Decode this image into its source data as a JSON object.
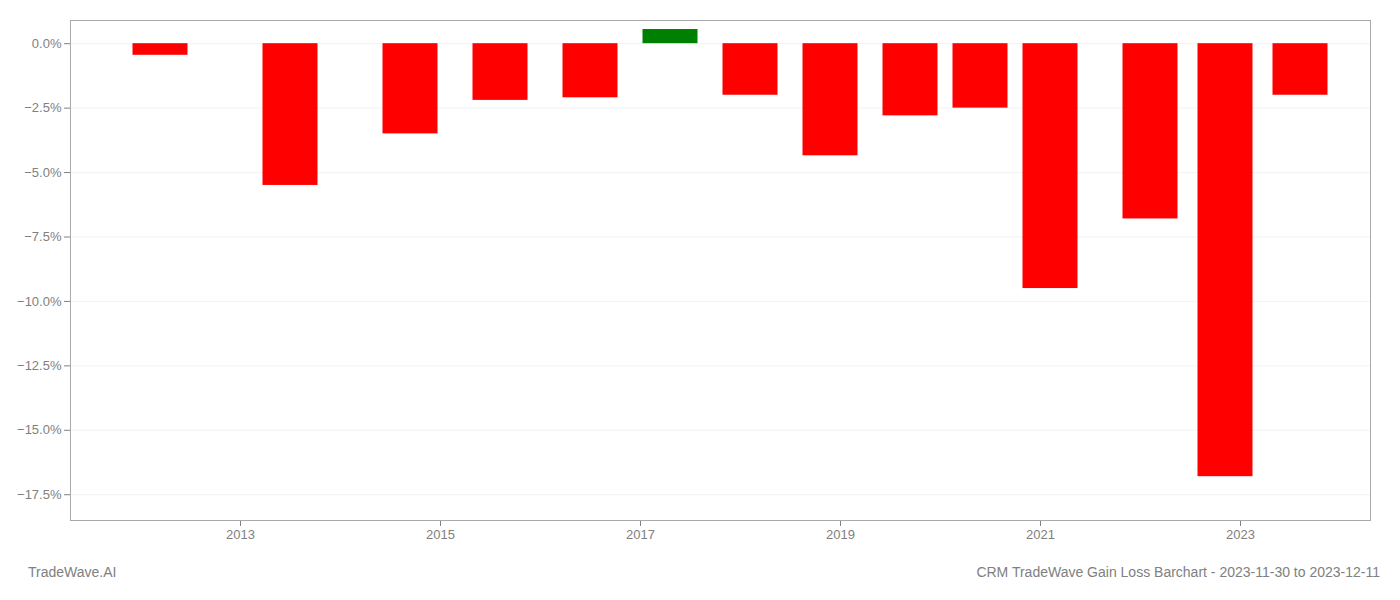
{
  "chart_data": {
    "type": "bar",
    "title": "CRM TradeWave Gain Loss Barchart - 2023-11-30 to 2023-12-11",
    "annotations": [
      "TradeWave.AI"
    ],
    "x": [
      2012.2,
      2013.5,
      2014.7,
      2015.6,
      2016.5,
      2017.3,
      2018.1,
      2018.9,
      2019.7,
      2020.4,
      2021.1,
      2022.1,
      2022.85,
      2023.6
    ],
    "values": [
      -0.45,
      -5.5,
      -3.5,
      -2.2,
      -2.1,
      0.55,
      -2.0,
      -4.35,
      -2.8,
      -2.5,
      -9.5,
      -6.8,
      -16.8,
      -2.0
    ],
    "colors": [
      "#ff0000",
      "#ff0000",
      "#ff0000",
      "#ff0000",
      "#ff0000",
      "#008000",
      "#ff0000",
      "#ff0000",
      "#ff0000",
      "#ff0000",
      "#ff0000",
      "#ff0000",
      "#ff0000",
      "#ff0000"
    ],
    "xlim": [
      2011.3,
      2024.3
    ],
    "xticks": [
      2013,
      2015,
      2017,
      2019,
      2021,
      2023
    ],
    "ylim": [
      -18.5,
      0.9
    ],
    "yticks": [
      {
        "value": 0.0,
        "label": "0.0%"
      },
      {
        "value": -2.5,
        "label": "−2.5%"
      },
      {
        "value": -5.0,
        "label": "−5.0%"
      },
      {
        "value": -7.5,
        "label": "−7.5%"
      },
      {
        "value": -10.0,
        "label": "−10.0%"
      },
      {
        "value": -12.5,
        "label": "−12.5%"
      },
      {
        "value": -15.0,
        "label": "−15.0%"
      },
      {
        "value": -17.5,
        "label": "−17.5%"
      }
    ],
    "grid": true
  }
}
